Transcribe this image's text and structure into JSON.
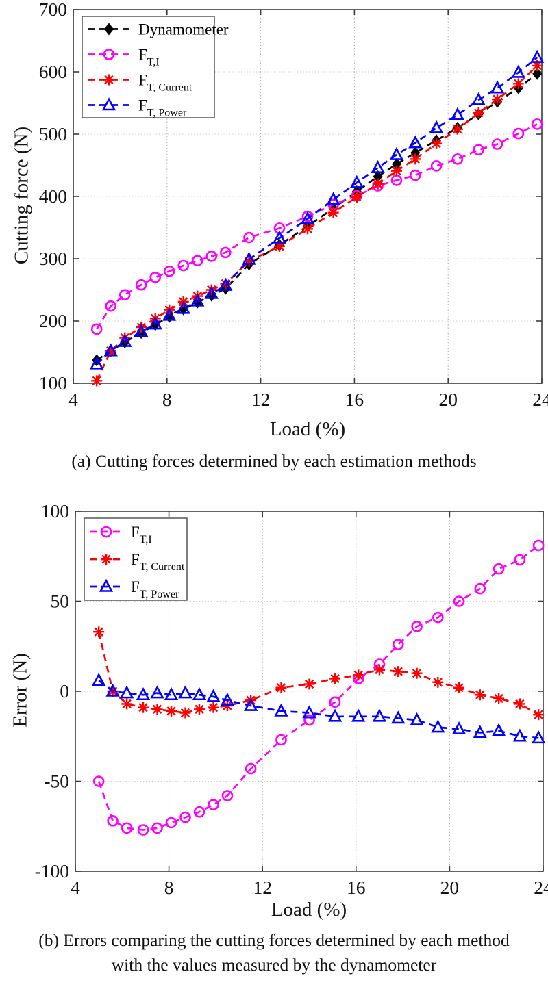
{
  "page": {
    "background": "#ffffff"
  },
  "colors": {
    "dynamometer": "#000000",
    "ft_i": "#FF00FF",
    "ft_current": "#FF0000",
    "ft_power": "#0000FF",
    "axis": "#3c3c3c",
    "grid": "#9a9a9a"
  },
  "chart_data": [
    {
      "id": "a",
      "type": "line",
      "caption_lines": [
        "(a) Cutting forces determined by each estimation methods"
      ],
      "xlabel": "Load (%)",
      "ylabel": "Cutting force (N)",
      "xlim": [
        4,
        24
      ],
      "ylim": [
        100,
        700
      ],
      "xticks": [
        4,
        8,
        12,
        16,
        20,
        24
      ],
      "yticks": [
        100,
        200,
        300,
        400,
        500,
        600,
        700
      ],
      "grid": true,
      "legend_position": "top-left",
      "x": [
        5,
        5.6,
        6.2,
        6.9,
        7.5,
        8.1,
        8.7,
        9.3,
        9.9,
        10.5,
        11.5,
        12.8,
        14,
        15.1,
        16.1,
        17,
        17.8,
        18.6,
        19.5,
        20.4,
        21.3,
        22.1,
        23,
        23.8
      ],
      "series": [
        {
          "sid": "dynamometer",
          "label": "Dynamometer",
          "label_sub": "",
          "color": "#000000",
          "marker": "diamond",
          "linestyle": "dashed",
          "values": [
            137,
            152,
            166,
            181,
            194,
            207,
            219,
            230,
            241,
            252,
            291,
            322,
            352,
            381,
            408,
            432,
            452,
            470,
            490,
            510,
            532,
            552,
            574,
            597
          ]
        },
        {
          "sid": "ft_i",
          "label": "F",
          "label_sub": "T,I",
          "color": "#FF00FF",
          "marker": "circle",
          "linestyle": "dashed",
          "values": [
            187,
            224,
            242,
            258,
            270,
            280,
            289,
            297,
            304,
            310,
            334,
            349,
            368,
            387,
            401,
            417,
            426,
            434,
            449,
            460,
            475,
            484,
            501,
            516
          ]
        },
        {
          "sid": "ft_current",
          "label": "F",
          "label_sub": "T, Current",
          "color": "#FF0000",
          "marker": "asterisk",
          "linestyle": "dashed",
          "values": [
            104,
            152,
            173,
            190,
            204,
            218,
            231,
            240,
            250,
            260,
            296,
            320,
            348,
            374,
            399,
            420,
            441,
            460,
            485,
            508,
            534,
            556,
            581,
            610
          ]
        },
        {
          "sid": "ft_power",
          "label": "F",
          "label_sub": "T, Power",
          "color": "#0000FF",
          "marker": "triangle",
          "linestyle": "dashed",
          "values": [
            131,
            152,
            167,
            183,
            195,
            209,
            220,
            232,
            244,
            257,
            299,
            333,
            364,
            395,
            422,
            446,
            467,
            486,
            510,
            531,
            555,
            574,
            599,
            623
          ]
        }
      ]
    },
    {
      "id": "b",
      "type": "line",
      "caption_lines": [
        "(b) Errors comparing the cutting forces determined by each method",
        "with the values measured by the dynamometer"
      ],
      "xlabel": "Load (%)",
      "ylabel": "Error (N)",
      "xlim": [
        4,
        24
      ],
      "ylim": [
        -100,
        100
      ],
      "xticks": [
        4,
        8,
        12,
        16,
        20,
        24
      ],
      "yticks": [
        -100,
        -50,
        0,
        50,
        100
      ],
      "grid": true,
      "legend_position": "top-left",
      "x": [
        5,
        5.6,
        6.2,
        6.9,
        7.5,
        8.1,
        8.7,
        9.3,
        9.9,
        10.5,
        11.5,
        12.8,
        14,
        15.1,
        16.1,
        17,
        17.8,
        18.6,
        19.5,
        20.4,
        21.3,
        22.1,
        23,
        23.8
      ],
      "series": [
        {
          "sid": "ft_i",
          "label": "F",
          "label_sub": "T,I",
          "color": "#FF00FF",
          "marker": "circle",
          "linestyle": "dashed",
          "values": [
            -50,
            -72,
            -76,
            -77,
            -76,
            -73,
            -70,
            -67,
            -63,
            -58,
            -43,
            -27,
            -16,
            -6,
            7,
            15,
            26,
            36,
            41,
            50,
            57,
            68,
            73,
            81
          ]
        },
        {
          "sid": "ft_current",
          "label": "F",
          "label_sub": "T, Current",
          "color": "#FF0000",
          "marker": "asterisk",
          "linestyle": "dashed",
          "values": [
            33,
            0,
            -7,
            -9,
            -10,
            -11,
            -12,
            -10,
            -9,
            -8,
            -5,
            2,
            4,
            7,
            9,
            12,
            11,
            10,
            5,
            2,
            -2,
            -4,
            -7,
            -13
          ]
        },
        {
          "sid": "ft_power",
          "label": "F",
          "label_sub": "T, Power",
          "color": "#0000FF",
          "marker": "triangle",
          "linestyle": "dashed",
          "values": [
            6,
            0,
            -1,
            -2,
            -1,
            -2,
            -1,
            -2,
            -3,
            -5,
            -8,
            -11,
            -12,
            -14,
            -14,
            -14,
            -15,
            -16,
            -20,
            -21,
            -23,
            -22,
            -25,
            -26
          ]
        }
      ]
    }
  ]
}
